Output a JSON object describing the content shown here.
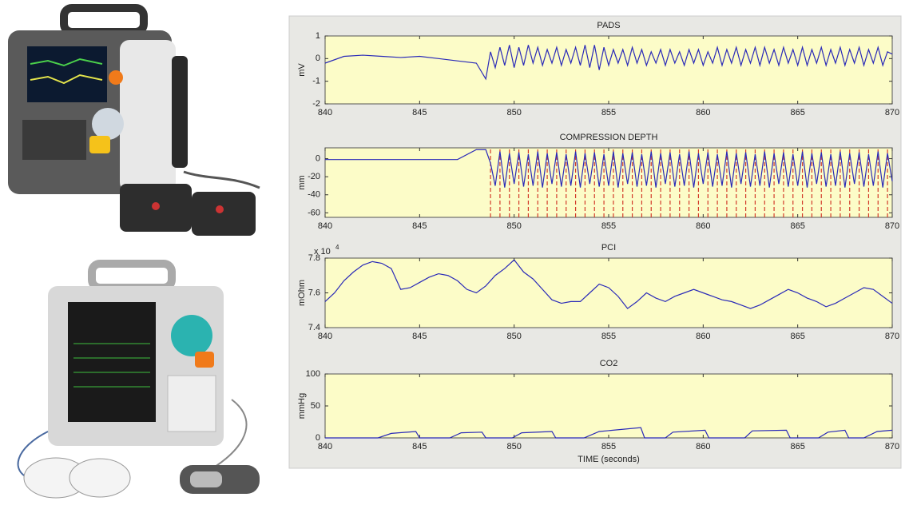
{
  "chart_data": [
    {
      "type": "line",
      "title": "PADS",
      "ylabel": "mV",
      "color": "#2a2ab8",
      "xlim": [
        840,
        870
      ],
      "xticks": [
        840,
        845,
        850,
        855,
        860,
        865,
        870
      ],
      "ylim": [
        -2,
        1
      ],
      "yticks": [
        -2,
        -1,
        0,
        1
      ],
      "x": [
        840,
        841,
        842,
        843,
        844,
        845,
        846,
        847,
        848,
        848.5,
        848.75,
        849,
        849.25,
        849.5,
        849.75,
        850,
        850.25,
        850.5,
        850.75,
        851,
        851.25,
        851.5,
        851.75,
        852,
        852.25,
        852.5,
        852.75,
        853,
        853.25,
        853.5,
        853.75,
        854,
        854.25,
        854.5,
        854.75,
        855,
        855.25,
        855.5,
        855.75,
        856,
        856.25,
        856.5,
        856.75,
        857,
        857.25,
        857.5,
        857.75,
        858,
        858.25,
        858.5,
        858.75,
        859,
        859.25,
        859.5,
        859.75,
        860,
        860.25,
        860.5,
        860.75,
        861,
        861.25,
        861.5,
        861.75,
        862,
        862.25,
        862.5,
        862.75,
        863,
        863.25,
        863.5,
        863.75,
        864,
        864.25,
        864.5,
        864.75,
        865,
        865.25,
        865.5,
        865.75,
        866,
        866.25,
        866.5,
        866.75,
        867,
        867.25,
        867.5,
        867.75,
        868,
        868.25,
        868.5,
        868.75,
        869,
        869.25,
        869.5,
        869.75,
        870
      ],
      "values": [
        -0.2,
        0.1,
        0.15,
        0.1,
        0.05,
        0.1,
        0,
        -0.1,
        -0.2,
        -0.9,
        0.3,
        -0.4,
        0.5,
        -0.3,
        0.6,
        -0.4,
        0.5,
        -0.3,
        0.6,
        -0.2,
        0.5,
        -0.3,
        0.4,
        -0.2,
        0.5,
        -0.3,
        0.4,
        -0.2,
        0.5,
        -0.3,
        0.6,
        -0.4,
        0.6,
        -0.5,
        0.5,
        -0.3,
        0.4,
        -0.2,
        0.4,
        -0.3,
        0.5,
        -0.2,
        0.4,
        -0.3,
        0.3,
        -0.2,
        0.4,
        -0.3,
        0.4,
        -0.2,
        0.3,
        -0.3,
        0.4,
        -0.2,
        0.4,
        -0.3,
        0.3,
        -0.2,
        0.5,
        -0.3,
        0.4,
        -0.2,
        0.5,
        -0.3,
        0.4,
        -0.2,
        0.5,
        -0.3,
        0.5,
        -0.2,
        0.4,
        -0.3,
        0.5,
        -0.2,
        0.4,
        -0.3,
        0.5,
        -0.3,
        0.4,
        -0.2,
        0.5,
        -0.3,
        0.4,
        -0.2,
        0.5,
        -0.3,
        0.4,
        -0.2,
        0.5,
        -0.3,
        0.4,
        -0.2,
        0.5,
        -0.3,
        0.3,
        0.2
      ]
    },
    {
      "type": "line",
      "title": "COMPRESSION DEPTH",
      "ylabel": "mm",
      "color": "#2a2ab8",
      "xlim": [
        840,
        870
      ],
      "xticks": [
        840,
        845,
        850,
        855,
        860,
        865,
        870
      ],
      "ylim": [
        -65,
        12
      ],
      "yticks": [
        -60,
        -40,
        -20,
        0
      ],
      "x": [
        840,
        841,
        842,
        843,
        844,
        845,
        846,
        847,
        848,
        848.5,
        848.75,
        849,
        849.25,
        849.5,
        849.75,
        850,
        850.25,
        850.5,
        850.75,
        851,
        851.25,
        851.5,
        851.75,
        852,
        852.25,
        852.5,
        852.75,
        853,
        853.25,
        853.5,
        853.75,
        854,
        854.25,
        854.5,
        854.75,
        855,
        855.25,
        855.5,
        855.75,
        856,
        856.25,
        856.5,
        856.75,
        857,
        857.25,
        857.5,
        857.75,
        858,
        858.25,
        858.5,
        858.75,
        859,
        859.25,
        859.5,
        859.75,
        860,
        860.25,
        860.5,
        860.75,
        861,
        861.25,
        861.5,
        861.75,
        862,
        862.25,
        862.5,
        862.75,
        863,
        863.25,
        863.5,
        863.75,
        864,
        864.25,
        864.5,
        864.75,
        865,
        865.25,
        865.5,
        865.75,
        866,
        866.25,
        866.5,
        866.75,
        867,
        867.25,
        867.5,
        867.75,
        868,
        868.25,
        868.5,
        868.75,
        869,
        869.25,
        869.5,
        869.75,
        870
      ],
      "values": [
        -1,
        -1,
        -1,
        -1,
        -1,
        -1,
        -1,
        -1,
        10,
        10,
        -5,
        -30,
        8,
        -32,
        6,
        -28,
        7,
        -31,
        5,
        -30,
        8,
        -32,
        6,
        -28,
        7,
        -31,
        5,
        -30,
        8,
        -32,
        6,
        -28,
        7,
        -31,
        5,
        -30,
        8,
        -32,
        6,
        -28,
        7,
        -31,
        5,
        -30,
        8,
        -32,
        6,
        -28,
        7,
        -31,
        5,
        -30,
        8,
        -32,
        6,
        -28,
        7,
        -31,
        5,
        -30,
        8,
        -32,
        6,
        -28,
        7,
        -31,
        5,
        -30,
        8,
        -32,
        6,
        -28,
        7,
        -31,
        5,
        -30,
        8,
        -32,
        6,
        -28,
        7,
        -31,
        5,
        -30,
        8,
        -32,
        6,
        -28,
        7,
        -31,
        5,
        -30,
        8,
        -32,
        6,
        -25
      ],
      "event_color": "#d23a2a",
      "event_x": [
        848.75,
        849.25,
        849.75,
        850.25,
        850.75,
        851.25,
        851.75,
        852.25,
        852.75,
        853.25,
        853.75,
        854.25,
        854.75,
        855.25,
        855.75,
        856.25,
        856.75,
        857.25,
        857.75,
        858.25,
        858.75,
        859.25,
        859.75,
        860.25,
        860.75,
        861.25,
        861.75,
        862.25,
        862.75,
        863.25,
        863.75,
        864.25,
        864.75,
        865.25,
        865.75,
        866.25,
        866.75,
        867.25,
        867.75,
        868.25,
        868.75,
        869.25,
        869.75
      ]
    },
    {
      "type": "line",
      "title": "PCI",
      "ylabel": "mOhm",
      "color": "#2a2ab8",
      "y_scale_label": {
        "base": "x 10",
        "exponent": "4"
      },
      "xlim": [
        840,
        870
      ],
      "xticks": [
        840,
        845,
        850,
        855,
        860,
        865,
        870
      ],
      "ylim": [
        7.4,
        7.8
      ],
      "yticks": [
        7.4,
        7.6,
        7.8
      ],
      "x": [
        840,
        840.5,
        841,
        841.5,
        842,
        842.5,
        843,
        843.5,
        844,
        844.5,
        845,
        845.5,
        846,
        846.5,
        847,
        847.5,
        848,
        848.5,
        849,
        849.5,
        850,
        850.5,
        851,
        851.5,
        852,
        852.5,
        853,
        853.5,
        854,
        854.5,
        855,
        855.5,
        856,
        856.5,
        857,
        857.5,
        858,
        858.5,
        859,
        859.5,
        860,
        860.5,
        861,
        861.5,
        862,
        862.5,
        863,
        863.5,
        864,
        864.5,
        865,
        865.5,
        866,
        866.5,
        867,
        867.5,
        868,
        868.5,
        869,
        869.5,
        870
      ],
      "values": [
        7.55,
        7.6,
        7.67,
        7.72,
        7.76,
        7.78,
        7.77,
        7.74,
        7.62,
        7.63,
        7.66,
        7.69,
        7.71,
        7.7,
        7.67,
        7.62,
        7.6,
        7.64,
        7.7,
        7.74,
        7.79,
        7.72,
        7.68,
        7.62,
        7.56,
        7.54,
        7.55,
        7.55,
        7.6,
        7.65,
        7.63,
        7.58,
        7.51,
        7.55,
        7.6,
        7.57,
        7.55,
        7.58,
        7.6,
        7.62,
        7.6,
        7.58,
        7.56,
        7.55,
        7.53,
        7.51,
        7.53,
        7.56,
        7.59,
        7.62,
        7.6,
        7.57,
        7.55,
        7.52,
        7.54,
        7.57,
        7.6,
        7.63,
        7.62,
        7.58,
        7.54
      ]
    },
    {
      "type": "line",
      "title": "CO2",
      "ylabel": "mmHg",
      "xlabel": "TIME (seconds)",
      "color": "#2a2ab8",
      "xlim": [
        840,
        870
      ],
      "xticks": [
        840,
        845,
        850,
        855,
        860,
        865,
        870
      ],
      "ylim": [
        0,
        100
      ],
      "yticks": [
        0,
        50,
        100
      ],
      "x": [
        840,
        842.8,
        843.5,
        844.8,
        845,
        846.6,
        847.2,
        848.3,
        848.5,
        849.9,
        850.4,
        852,
        852.2,
        853.7,
        854.5,
        856.7,
        856.9,
        858,
        858.4,
        860.1,
        860.3,
        862.2,
        862.6,
        864.4,
        864.6,
        866.1,
        866.6,
        867.5,
        867.7,
        868.5,
        869.2,
        870
      ],
      "values": [
        0,
        0,
        7,
        10,
        0,
        0,
        8,
        9,
        0,
        0,
        8,
        10,
        0,
        0,
        10,
        16,
        0,
        0,
        9,
        12,
        0,
        0,
        11,
        12,
        0,
        0,
        9,
        12,
        0,
        0,
        10,
        12
      ]
    }
  ]
}
